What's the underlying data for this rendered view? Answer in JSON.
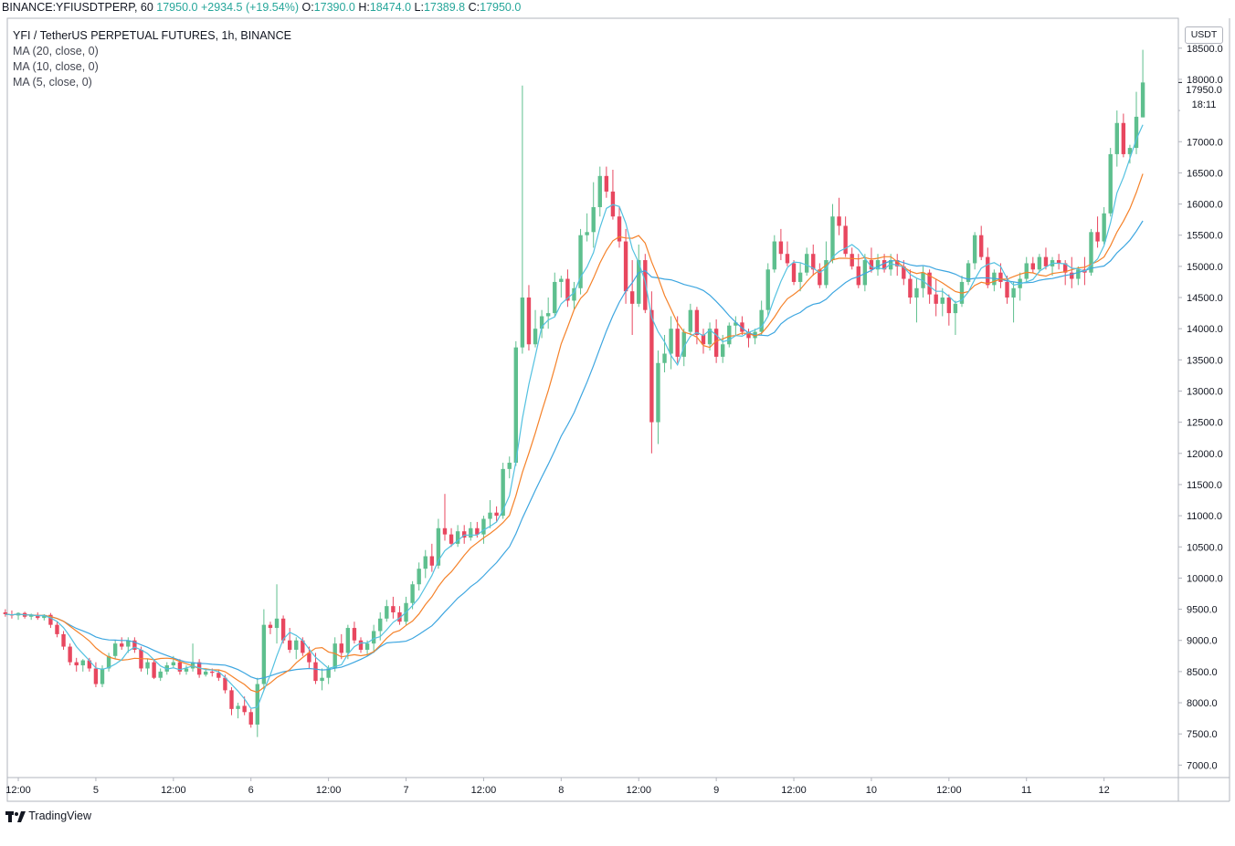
{
  "header": {
    "symbol": "BINANCE:YFIUSDTPERP, 60",
    "last": "17950.0",
    "change": "+2934.5 (+19.54%)",
    "o_label": "O:",
    "o_val": "17390.0",
    "h_label": "H:",
    "h_val": "18474.0",
    "l_label": "L:",
    "l_val": "17389.8",
    "c_label": "C:",
    "c_val": "17950.0"
  },
  "legend": {
    "title": "YFI / TetherUS PERPETUAL FUTURES, 1h, BINANCE",
    "ma20": "MA (20, close, 0)",
    "ma10": "MA (10, close, 0)",
    "ma5": "MA (5, close, 0)"
  },
  "price_axis": {
    "currency": "USDT",
    "last_price": "17950.0",
    "countdown": "18:11"
  },
  "footer": {
    "brand": "TradingView"
  },
  "colors": {
    "up": "#26a69a",
    "down": "#ef5350",
    "up_fill": "#5ebf8e",
    "down_fill": "#e8475f",
    "ma5": "#53c1e0",
    "ma10": "#f5822a",
    "ma20": "#3da6e0",
    "grid": "#f0f3fa",
    "axis": "#b2b5be"
  },
  "chart_data": {
    "type": "candlestick",
    "yticks": [
      7000,
      7500,
      8000,
      8500,
      9000,
      9500,
      10000,
      10500,
      11000,
      11500,
      12000,
      12500,
      13000,
      13500,
      14000,
      14500,
      15000,
      15500,
      16000,
      16500,
      17000,
      17500,
      18000,
      18500
    ],
    "ytick_labels": [
      "7000.0",
      "7500.0",
      "8000.0",
      "8500.0",
      "9000.0",
      "9500.0",
      "10000.0",
      "10500.0",
      "11000.0",
      "11500.0",
      "12000.0",
      "12500.0",
      "13000.0",
      "13500.0",
      "14000.0",
      "14500.0",
      "15000.0",
      "15500.0",
      "16000.0",
      "16500.0",
      "17000.0",
      "17500.0",
      "18000.0",
      "18500.0"
    ],
    "ylim": [
      6800,
      18980
    ],
    "xticks": [
      {
        "label": "12:00",
        "hour": 12
      },
      {
        "label": "5",
        "hour": 24
      },
      {
        "label": "12:00",
        "hour": 36
      },
      {
        "label": "6",
        "hour": 48
      },
      {
        "label": "12:00",
        "hour": 60
      },
      {
        "label": "7",
        "hour": 72
      },
      {
        "label": "12:00",
        "hour": 84
      },
      {
        "label": "8",
        "hour": 96
      },
      {
        "label": "12:00",
        "hour": 108
      },
      {
        "label": "9",
        "hour": 120
      },
      {
        "label": "12:00",
        "hour": 132
      },
      {
        "label": "10",
        "hour": 144
      },
      {
        "label": "12:00",
        "hour": 156
      },
      {
        "label": "11",
        "hour": 168
      },
      {
        "label": "12",
        "hour": 180
      }
    ],
    "xlim_hours": [
      10.3,
      191.5
    ],
    "first_candle_hour": 10,
    "series": [
      {
        "name": "MA (20, close, 0)"
      },
      {
        "name": "MA (10, close, 0)"
      },
      {
        "name": "MA (5, close, 0)"
      }
    ],
    "candles": [
      [
        9450,
        9500,
        9380,
        9420
      ],
      [
        9420,
        9480,
        9350,
        9400
      ],
      [
        9400,
        9450,
        9330,
        9440
      ],
      [
        9440,
        9460,
        9350,
        9380
      ],
      [
        9380,
        9430,
        9330,
        9400
      ],
      [
        9400,
        9450,
        9330,
        9360
      ],
      [
        9360,
        9420,
        9320,
        9410
      ],
      [
        9410,
        9440,
        9200,
        9250
      ],
      [
        9250,
        9300,
        9050,
        9100
      ],
      [
        9100,
        9150,
        8850,
        8900
      ],
      [
        8900,
        8950,
        8600,
        8650
      ],
      [
        8650,
        8720,
        8500,
        8600
      ],
      [
        8600,
        8700,
        8500,
        8680
      ],
      [
        8680,
        8720,
        8500,
        8550
      ],
      [
        8550,
        8650,
        8250,
        8300
      ],
      [
        8300,
        8600,
        8250,
        8550
      ],
      [
        8550,
        8800,
        8500,
        8750
      ],
      [
        8750,
        9000,
        8700,
        8950
      ],
      [
        8950,
        9050,
        8850,
        8900
      ],
      [
        8900,
        9050,
        8800,
        9000
      ],
      [
        9000,
        9050,
        8800,
        8850
      ],
      [
        8850,
        8900,
        8500,
        8550
      ],
      [
        8550,
        8700,
        8450,
        8650
      ],
      [
        8650,
        8700,
        8380,
        8400
      ],
      [
        8400,
        8550,
        8350,
        8500
      ],
      [
        8500,
        8650,
        8450,
        8600
      ],
      [
        8600,
        8750,
        8550,
        8650
      ],
      [
        8650,
        8700,
        8450,
        8500
      ],
      [
        8500,
        8600,
        8450,
        8550
      ],
      [
        8550,
        8950,
        8500,
        8650
      ],
      [
        8650,
        8700,
        8400,
        8450
      ],
      [
        8450,
        8550,
        8420,
        8500
      ],
      [
        8500,
        8550,
        8420,
        8480
      ],
      [
        8480,
        8520,
        8350,
        8400
      ],
      [
        8400,
        8450,
        8150,
        8200
      ],
      [
        8200,
        8250,
        7800,
        7900
      ],
      [
        7900,
        8000,
        7750,
        7950
      ],
      [
        7950,
        8100,
        7800,
        7850
      ],
      [
        7850,
        7900,
        7600,
        7650
      ],
      [
        7650,
        8400,
        7450,
        8300
      ],
      [
        8300,
        9500,
        8200,
        9250
      ],
      [
        9250,
        9300,
        9100,
        9200
      ],
      [
        9200,
        9900,
        8950,
        9350
      ],
      [
        9350,
        9400,
        8950,
        9000
      ],
      [
        9000,
        9200,
        8800,
        8850
      ],
      [
        8850,
        9050,
        8700,
        9000
      ],
      [
        9000,
        9050,
        8750,
        8800
      ],
      [
        8800,
        8900,
        8550,
        8650
      ],
      [
        8650,
        8800,
        8300,
        8350
      ],
      [
        8350,
        8550,
        8200,
        8400
      ],
      [
        8400,
        8600,
        8300,
        8550
      ],
      [
        8550,
        9050,
        8500,
        8950
      ],
      [
        8950,
        9100,
        8700,
        8800
      ],
      [
        8800,
        9250,
        8700,
        9200
      ],
      [
        9200,
        9300,
        8950,
        9000
      ],
      [
        9000,
        9050,
        8800,
        8850
      ],
      [
        8850,
        9000,
        8750,
        8950
      ],
      [
        8950,
        9250,
        8800,
        9150
      ],
      [
        9150,
        9450,
        9000,
        9350
      ],
      [
        9350,
        9650,
        9300,
        9550
      ],
      [
        9550,
        9700,
        9350,
        9450
      ],
      [
        9450,
        9550,
        9250,
        9300
      ],
      [
        9300,
        9700,
        9250,
        9600
      ],
      [
        9600,
        9950,
        9500,
        9900
      ],
      [
        9900,
        10250,
        9800,
        10150
      ],
      [
        10150,
        10450,
        10000,
        10350
      ],
      [
        10350,
        10550,
        10100,
        10200
      ],
      [
        10200,
        10950,
        10150,
        10800
      ],
      [
        10800,
        11350,
        10600,
        10700
      ],
      [
        10700,
        10800,
        10500,
        10550
      ],
      [
        10550,
        10850,
        10500,
        10750
      ],
      [
        10750,
        10850,
        10550,
        10650
      ],
      [
        10650,
        10900,
        10600,
        10800
      ],
      [
        10800,
        10900,
        10650,
        10700
      ],
      [
        10700,
        11000,
        10550,
        10950
      ],
      [
        10950,
        11250,
        10800,
        11050
      ],
      [
        11050,
        11150,
        10900,
        11000
      ],
      [
        11000,
        11850,
        10950,
        11750
      ],
      [
        11750,
        11950,
        11600,
        11850
      ],
      [
        11850,
        13800,
        11800,
        13700
      ],
      [
        13700,
        17900,
        13600,
        14500
      ],
      [
        14500,
        14700,
        13650,
        13750
      ],
      [
        13750,
        14300,
        13700,
        14000
      ],
      [
        14000,
        14300,
        13850,
        14200
      ],
      [
        14200,
        14500,
        14000,
        14250
      ],
      [
        14250,
        14900,
        14200,
        14750
      ],
      [
        14750,
        14850,
        14500,
        14800
      ],
      [
        14800,
        14950,
        14350,
        14450
      ],
      [
        14450,
        14750,
        14300,
        14650
      ],
      [
        14650,
        15600,
        14550,
        15500
      ],
      [
        15500,
        15850,
        15400,
        15550
      ],
      [
        15550,
        16350,
        15300,
        15950
      ],
      [
        15950,
        16600,
        15800,
        16450
      ],
      [
        16450,
        16600,
        16100,
        16200
      ],
      [
        16200,
        16550,
        15750,
        15800
      ],
      [
        15800,
        15950,
        15300,
        15400
      ],
      [
        15400,
        15600,
        14400,
        14600
      ],
      [
        14600,
        15100,
        13900,
        14400
      ],
      [
        14400,
        15350,
        14350,
        15100
      ],
      [
        15100,
        15200,
        14250,
        14300
      ],
      [
        14300,
        14600,
        12000,
        12500
      ],
      [
        12500,
        13650,
        12150,
        13450
      ],
      [
        13450,
        13900,
        13300,
        13600
      ],
      [
        13600,
        14200,
        13350,
        14000
      ],
      [
        14000,
        14200,
        13450,
        13550
      ],
      [
        13550,
        14000,
        13400,
        13950
      ],
      [
        13950,
        14400,
        13900,
        14300
      ],
      [
        14300,
        14350,
        13750,
        13900
      ],
      [
        13900,
        14000,
        13600,
        13750
      ],
      [
        13750,
        14100,
        13650,
        14000
      ],
      [
        14000,
        14150,
        13450,
        13550
      ],
      [
        13550,
        13900,
        13450,
        13750
      ],
      [
        13750,
        14100,
        13700,
        14050
      ],
      [
        14050,
        14200,
        13900,
        14100
      ],
      [
        14100,
        14200,
        13900,
        13950
      ],
      [
        13950,
        14000,
        13700,
        13850
      ],
      [
        13850,
        14000,
        13750,
        13950
      ],
      [
        13950,
        14450,
        13900,
        14300
      ],
      [
        14300,
        15050,
        14200,
        14950
      ],
      [
        14950,
        15500,
        14900,
        15400
      ],
      [
        15400,
        15600,
        15100,
        15200
      ],
      [
        15200,
        15400,
        15000,
        15050
      ],
      [
        15050,
        15100,
        14700,
        14750
      ],
      [
        14750,
        15050,
        14600,
        14900
      ],
      [
        14900,
        15300,
        14850,
        15200
      ],
      [
        15200,
        15350,
        14850,
        14950
      ],
      [
        14950,
        15050,
        14650,
        14700
      ],
      [
        14700,
        15400,
        14650,
        15100
      ],
      [
        15100,
        16000,
        15050,
        15800
      ],
      [
        15800,
        16100,
        15500,
        15650
      ],
      [
        15650,
        15800,
        15150,
        15200
      ],
      [
        15200,
        15300,
        14950,
        15000
      ],
      [
        15000,
        15200,
        14650,
        14700
      ],
      [
        14700,
        15200,
        14600,
        15100
      ],
      [
        15100,
        15300,
        14900,
        14950
      ],
      [
        14950,
        15200,
        14850,
        15100
      ],
      [
        15100,
        15200,
        14900,
        14950
      ],
      [
        14950,
        15200,
        14850,
        15100
      ],
      [
        15100,
        15200,
        14850,
        15000
      ],
      [
        15000,
        15100,
        14700,
        14800
      ],
      [
        14800,
        14950,
        14400,
        14500
      ],
      [
        14500,
        14800,
        14100,
        14650
      ],
      [
        14650,
        15000,
        14500,
        14900
      ],
      [
        14900,
        14950,
        14400,
        14550
      ],
      [
        14550,
        14800,
        14200,
        14400
      ],
      [
        14400,
        14650,
        14200,
        14500
      ],
      [
        14500,
        14550,
        14050,
        14250
      ],
      [
        14250,
        14450,
        13900,
        14400
      ],
      [
        14400,
        14850,
        14350,
        14750
      ],
      [
        14750,
        15100,
        14700,
        15050
      ],
      [
        15050,
        15550,
        14950,
        15500
      ],
      [
        15500,
        15650,
        15100,
        15150
      ],
      [
        15150,
        15300,
        14650,
        14700
      ],
      [
        14700,
        14950,
        14600,
        14900
      ],
      [
        14900,
        15050,
        14650,
        14750
      ],
      [
        14750,
        14850,
        14400,
        14500
      ],
      [
        14500,
        14750,
        14100,
        14650
      ],
      [
        14650,
        14900,
        14450,
        14800
      ],
      [
        14800,
        15150,
        14750,
        15050
      ],
      [
        15050,
        15150,
        14900,
        14950
      ],
      [
        14950,
        15200,
        14900,
        15150
      ],
      [
        15150,
        15300,
        14950,
        15000
      ],
      [
        15000,
        15150,
        14850,
        15100
      ],
      [
        15100,
        15200,
        14950,
        15050
      ],
      [
        15050,
        15100,
        14700,
        14900
      ],
      [
        14900,
        15150,
        14650,
        14800
      ],
      [
        14800,
        15000,
        14700,
        14950
      ],
      [
        14950,
        15150,
        14700,
        14900
      ],
      [
        14900,
        15600,
        14850,
        15550
      ],
      [
        15550,
        15800,
        15300,
        15400
      ],
      [
        15400,
        15950,
        15350,
        15850
      ],
      [
        15850,
        16900,
        15800,
        16800
      ],
      [
        16800,
        17500,
        16600,
        17300
      ],
      [
        17300,
        17450,
        16750,
        16800
      ],
      [
        16800,
        16950,
        16650,
        16900
      ],
      [
        16900,
        17800,
        16800,
        17400
      ],
      [
        17390,
        18474,
        17389.8,
        17950
      ]
    ]
  }
}
